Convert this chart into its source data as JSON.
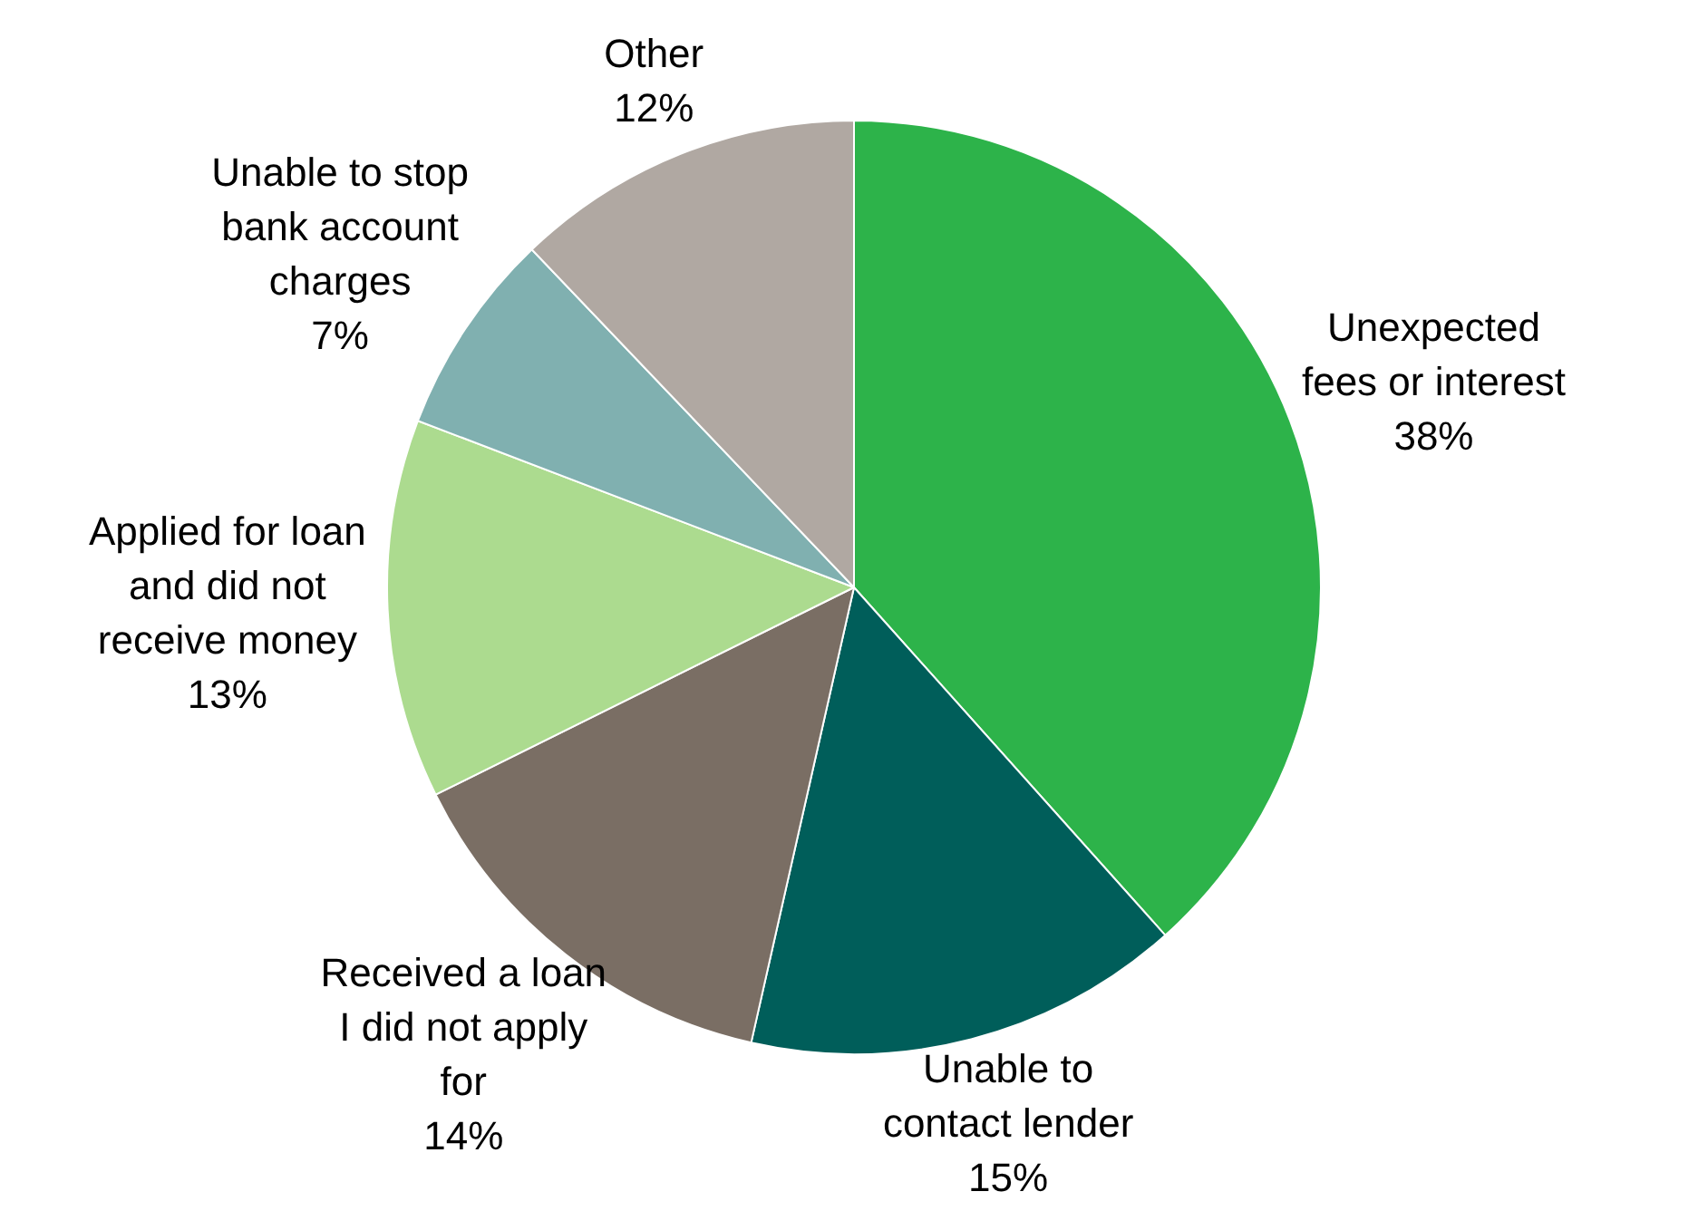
{
  "chart_data": {
    "type": "pie",
    "categories": [
      "Unexpected fees or interest",
      "Unable to contact lender",
      "Received a loan I did not apply for",
      "Applied for loan and did not receive money",
      "Unable to stop bank account charges",
      "Other"
    ],
    "values": [
      38,
      15,
      14,
      13,
      7,
      12
    ],
    "colors": [
      "#2db34a",
      "#005e5a",
      "#7a6e64",
      "#acdb8f",
      "#80b0b0",
      "#b0a8a2"
    ],
    "value_labels": [
      "38%",
      "15%",
      "14%",
      "13%",
      "7%",
      "12%"
    ]
  }
}
